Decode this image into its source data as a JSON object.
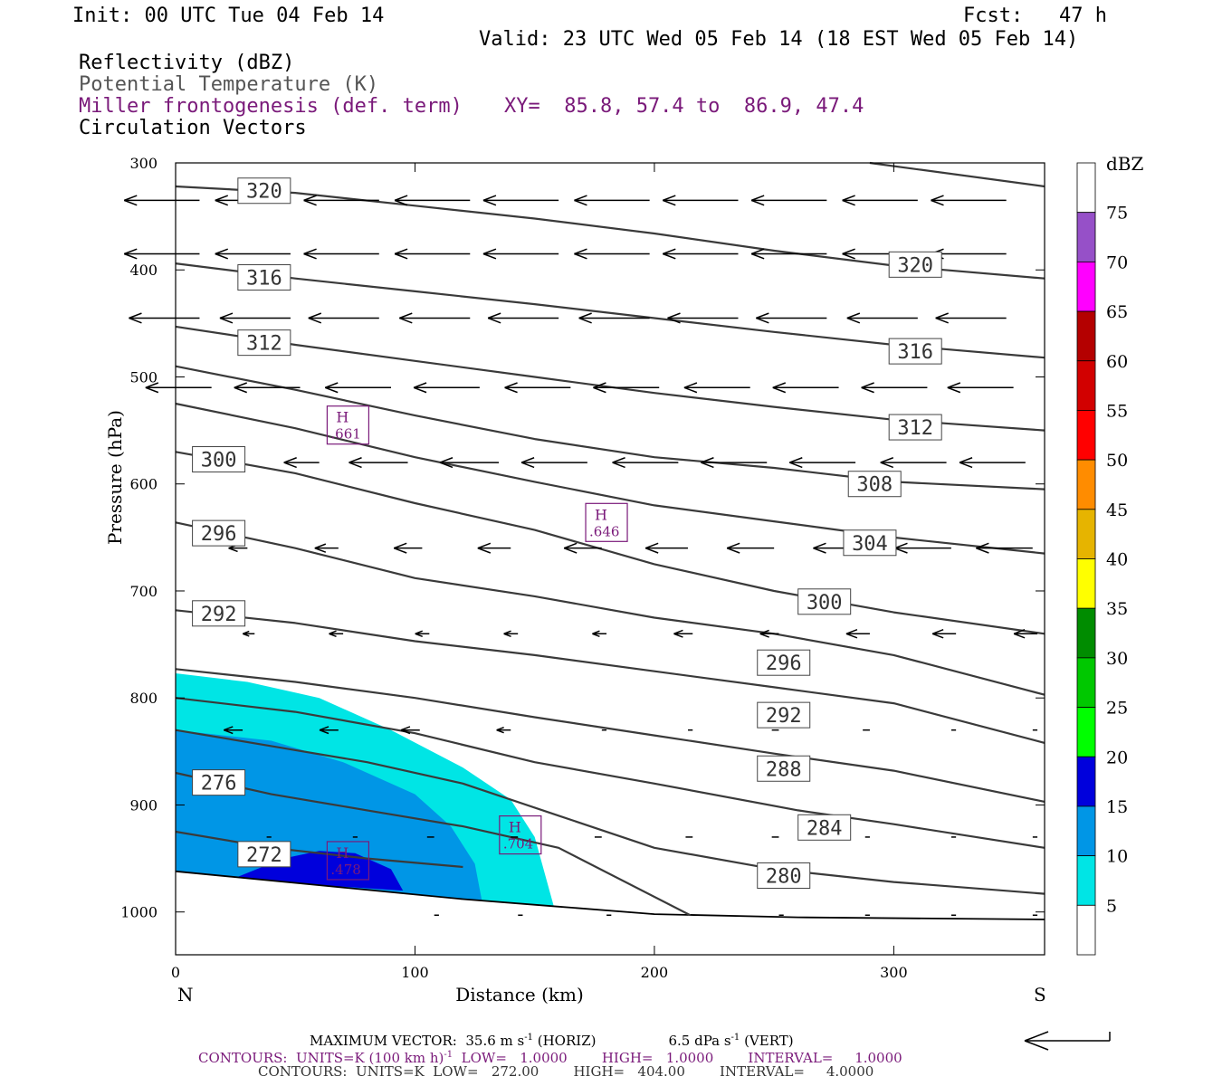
{
  "header": {
    "init": "Init: 00 UTC Tue 04 Feb 14",
    "fcst": "Fcst:   47 h",
    "valid": "Valid: 23 UTC Wed 05 Feb 14 (18 EST Wed 05 Feb 14)",
    "field1": "Reflectivity (dBZ)",
    "field2": "Potential Temperature (K)",
    "field3": "Miller frontogenesis (def. term)",
    "xy": "XY=  85.8, 57.4 to  86.9, 47.4",
    "field4": "Circulation Vectors"
  },
  "colors": {
    "contour": "#3a3a3a",
    "purple": "#7a1a7a",
    "dbz": [
      "#ffffff",
      "#00e5e5",
      "#0096e6",
      "#0000dc",
      "#00ff00",
      "#00c800",
      "#008c00",
      "#ffff00",
      "#e6b400",
      "#ff8c00",
      "#ff0000",
      "#d20000",
      "#b40000",
      "#ff00ff",
      "#9650c8",
      "#ffffff"
    ]
  },
  "chart_data": {
    "type": "cross-section",
    "xlabel": "Distance (km)",
    "ylabel": "Pressure (hPa)",
    "xlim": [
      0,
      363
    ],
    "ylim": [
      300,
      1040
    ],
    "x_ticks": [
      "0",
      "100",
      "200",
      "300"
    ],
    "y_ticks": [
      "300",
      "400",
      "500",
      "600",
      "700",
      "800",
      "900",
      "1000"
    ],
    "end_labels": {
      "left": "N",
      "right": "S"
    },
    "theta_contours": [
      {
        "value": 272,
        "label": "272",
        "points": [
          [
            0,
            925
          ],
          [
            40,
            940
          ],
          [
            80,
            950
          ],
          [
            120,
            958
          ]
        ]
      },
      {
        "value": 276,
        "label": "276",
        "points": [
          [
            0,
            870
          ],
          [
            40,
            890
          ],
          [
            80,
            905
          ],
          [
            120,
            920
          ],
          [
            160,
            940
          ],
          [
            215,
            1003
          ]
        ]
      },
      {
        "value": 280,
        "label": "280",
        "points": [
          [
            0,
            830
          ],
          [
            40,
            845
          ],
          [
            80,
            860
          ],
          [
            120,
            880
          ],
          [
            160,
            910
          ],
          [
            200,
            940
          ],
          [
            250,
            960
          ],
          [
            300,
            972
          ],
          [
            363,
            983
          ]
        ]
      },
      {
        "value": 284,
        "label": "284",
        "points": [
          [
            0,
            800
          ],
          [
            50,
            813
          ],
          [
            100,
            833
          ],
          [
            150,
            860
          ],
          [
            200,
            880
          ],
          [
            260,
            905
          ],
          [
            300,
            918
          ],
          [
            363,
            940
          ]
        ]
      },
      {
        "value": 288,
        "label": "288",
        "points": [
          [
            0,
            773
          ],
          [
            50,
            785
          ],
          [
            100,
            800
          ],
          [
            150,
            818
          ],
          [
            200,
            835
          ],
          [
            250,
            852
          ],
          [
            300,
            868
          ],
          [
            363,
            897
          ]
        ]
      },
      {
        "value": 292,
        "label": "292",
        "points": [
          [
            0,
            718
          ],
          [
            50,
            730
          ],
          [
            100,
            747
          ],
          [
            150,
            760
          ],
          [
            200,
            775
          ],
          [
            250,
            790
          ],
          [
            300,
            805
          ],
          [
            363,
            842
          ]
        ]
      },
      {
        "value": 296,
        "label": "296",
        "points": [
          [
            0,
            636
          ],
          [
            50,
            660
          ],
          [
            100,
            688
          ],
          [
            150,
            705
          ],
          [
            200,
            725
          ],
          [
            250,
            740
          ],
          [
            300,
            760
          ],
          [
            363,
            797
          ]
        ]
      },
      {
        "value": 300,
        "label": "300",
        "points": [
          [
            0,
            570
          ],
          [
            50,
            590
          ],
          [
            100,
            618
          ],
          [
            150,
            643
          ],
          [
            200,
            675
          ],
          [
            250,
            700
          ],
          [
            300,
            720
          ],
          [
            363,
            740
          ]
        ]
      },
      {
        "value": 304,
        "label": "304",
        "points": [
          [
            0,
            525
          ],
          [
            50,
            548
          ],
          [
            100,
            575
          ],
          [
            150,
            598
          ],
          [
            200,
            620
          ],
          [
            250,
            635
          ],
          [
            300,
            650
          ],
          [
            363,
            665
          ]
        ]
      },
      {
        "value": 308,
        "label": "308",
        "points": [
          [
            0,
            490
          ],
          [
            50,
            512
          ],
          [
            100,
            536
          ],
          [
            150,
            558
          ],
          [
            200,
            575
          ],
          [
            250,
            585
          ],
          [
            300,
            598
          ],
          [
            363,
            605
          ]
        ]
      },
      {
        "value": 312,
        "label": "312",
        "points": [
          [
            0,
            453
          ],
          [
            50,
            470
          ],
          [
            100,
            485
          ],
          [
            150,
            500
          ],
          [
            200,
            515
          ],
          [
            250,
            528
          ],
          [
            300,
            540
          ],
          [
            363,
            550
          ]
        ]
      },
      {
        "value": 316,
        "label": "316",
        "points": [
          [
            0,
            394
          ],
          [
            50,
            408
          ],
          [
            100,
            420
          ],
          [
            150,
            432
          ],
          [
            200,
            445
          ],
          [
            250,
            458
          ],
          [
            300,
            470
          ],
          [
            363,
            482
          ]
        ]
      },
      {
        "value": 320,
        "label": "320",
        "points": [
          [
            0,
            322
          ],
          [
            50,
            328
          ],
          [
            100,
            340
          ],
          [
            150,
            352
          ],
          [
            200,
            366
          ],
          [
            250,
            382
          ],
          [
            300,
            396
          ],
          [
            363,
            408
          ]
        ]
      },
      {
        "value": 324,
        "label": "",
        "points": [
          [
            290,
            300
          ],
          [
            363,
            322
          ]
        ]
      }
    ],
    "theta_labels": [
      {
        "label": "320",
        "x": 37,
        "p": 326
      },
      {
        "label": "316",
        "x": 37,
        "p": 407
      },
      {
        "label": "312",
        "x": 37,
        "p": 468
      },
      {
        "label": "300",
        "x": 18,
        "p": 577
      },
      {
        "label": "296",
        "x": 18,
        "p": 646
      },
      {
        "label": "292",
        "x": 18,
        "p": 721
      },
      {
        "label": "276",
        "x": 18,
        "p": 879
      },
      {
        "label": "272",
        "x": 37,
        "p": 946
      },
      {
        "label": "320",
        "x": 309,
        "p": 395
      },
      {
        "label": "316",
        "x": 309,
        "p": 476
      },
      {
        "label": "312",
        "x": 309,
        "p": 547
      },
      {
        "label": "308",
        "x": 292,
        "p": 600
      },
      {
        "label": "304",
        "x": 290,
        "p": 655
      },
      {
        "label": "300",
        "x": 271,
        "p": 710
      },
      {
        "label": "296",
        "x": 254,
        "p": 767
      },
      {
        "label": "292",
        "x": 254,
        "p": 816
      },
      {
        "label": "288",
        "x": 254,
        "p": 866
      },
      {
        "label": "284",
        "x": 271,
        "p": 921
      },
      {
        "label": "280",
        "x": 254,
        "p": 966
      }
    ],
    "frontogenesis_highs": [
      {
        "label": "H",
        "value": ".661",
        "x": 72,
        "p": 545
      },
      {
        "label": "H",
        "value": ".646",
        "x": 180,
        "p": 636
      },
      {
        "label": "H",
        "value": ".704",
        "x": 144,
        "p": 928
      },
      {
        "label": "H",
        "value": ".478",
        "x": 72,
        "p": 952
      }
    ],
    "reflectivity_areas": [
      {
        "dbz": 5,
        "points": [
          [
            0,
            777
          ],
          [
            30,
            785
          ],
          [
            60,
            800
          ],
          [
            90,
            830
          ],
          [
            120,
            865
          ],
          [
            140,
            895
          ],
          [
            150,
            930
          ],
          [
            158,
            995
          ],
          [
            120,
            990
          ],
          [
            60,
            978
          ],
          [
            0,
            968
          ]
        ]
      },
      {
        "dbz": 10,
        "points": [
          [
            0,
            830
          ],
          [
            40,
            840
          ],
          [
            70,
            860
          ],
          [
            100,
            890
          ],
          [
            115,
            920
          ],
          [
            125,
            955
          ],
          [
            128,
            990
          ],
          [
            80,
            980
          ],
          [
            0,
            970
          ]
        ]
      },
      {
        "dbz": 15,
        "points": [
          [
            25,
            968
          ],
          [
            45,
            950
          ],
          [
            60,
            943
          ],
          [
            75,
            945
          ],
          [
            90,
            960
          ],
          [
            95,
            980
          ],
          [
            60,
            975
          ],
          [
            25,
            970
          ]
        ]
      }
    ],
    "ground_surface": [
      [
        0,
        962
      ],
      [
        60,
        975
      ],
      [
        120,
        988
      ],
      [
        160,
        995
      ],
      [
        200,
        1002
      ],
      [
        260,
        1005
      ],
      [
        363,
        1007
      ]
    ],
    "vector_rows": [
      {
        "p": 335,
        "xs": [
          10,
          48,
          85,
          123,
          160,
          198,
          235,
          272,
          310,
          347
        ],
        "dxs": [
          -32,
          -32,
          -32,
          -32,
          -32,
          -32,
          -32,
          -32,
          -32,
          -32
        ]
      },
      {
        "p": 385,
        "xs": [
          10,
          48,
          85,
          123,
          160,
          198,
          235,
          272,
          310,
          347
        ],
        "dxs": [
          -32,
          -32,
          -32,
          -32,
          -32,
          -32,
          -32,
          -32,
          -32,
          -32
        ]
      },
      {
        "p": 445,
        "xs": [
          10,
          48,
          85,
          123,
          160,
          198,
          235,
          272,
          310,
          347
        ],
        "dxs": [
          -30,
          -30,
          -30,
          -30,
          -30,
          -30,
          -30,
          -30,
          -30,
          -30
        ]
      },
      {
        "p": 510,
        "xs": [
          15,
          52,
          90,
          127,
          165,
          202,
          240,
          277,
          314,
          350
        ],
        "dxs": [
          -28,
          -28,
          -28,
          -28,
          -28,
          -28,
          -28,
          -28,
          -28,
          -28
        ]
      },
      {
        "p": 580,
        "xs": [
          25,
          60,
          97,
          135,
          172,
          210,
          247,
          284,
          322,
          355
        ],
        "dxs": [
          -12,
          -15,
          -25,
          -25,
          -28,
          -28,
          -28,
          -28,
          -28,
          -28
        ]
      },
      {
        "p": 660,
        "xs": [
          30,
          68,
          103,
          140,
          178,
          214,
          250,
          288,
          324,
          358
        ],
        "dxs": [
          -8,
          -10,
          -12,
          -14,
          -16,
          -18,
          -20,
          -22,
          -24,
          -24
        ]
      },
      {
        "p": 740,
        "xs": [
          33,
          70,
          106,
          143,
          180,
          216,
          252,
          290,
          326,
          360
        ],
        "dxs": [
          -5,
          -6,
          -6,
          -6,
          -6,
          -8,
          -8,
          -10,
          -10,
          -10
        ]
      },
      {
        "p": 830,
        "xs": [
          28,
          68,
          102,
          140,
          180,
          216,
          252,
          290,
          326,
          360
        ],
        "dxs": [
          -8,
          -8,
          -8,
          -6,
          -2,
          -2,
          -3,
          -3,
          -2,
          -2
        ]
      },
      {
        "p": 930,
        "xs": [
          40,
          76,
          108,
          143,
          178,
          216,
          252,
          290,
          326,
          360
        ],
        "dxs": [
          -2,
          -2,
          -3,
          -3,
          -3,
          -3,
          -3,
          -2,
          -2,
          -2
        ]
      },
      {
        "p": 1003,
        "xs": [
          110,
          145,
          182,
          218,
          254,
          290,
          326,
          360
        ],
        "dxs": [
          -2,
          -2,
          -2,
          -2,
          -2,
          -2,
          -2,
          -2
        ]
      }
    ],
    "colorbar": {
      "title": "dBZ",
      "labels": [
        "75",
        "70",
        "65",
        "60",
        "55",
        "50",
        "45",
        "40",
        "35",
        "30",
        "25",
        "20",
        "15",
        "10",
        "5"
      ]
    }
  },
  "footer": {
    "max_vector": "MAXIMUM VECTOR:  35.6 m s",
    "max_vector_exp": "-1",
    "max_vector_horiz": " (HORIZ)",
    "max_vector_vert": "6.5 dPa s",
    "max_vector_vert_exp": "-1",
    "max_vector_vert_tail": " (VERT)",
    "contours1_a": "CONTOURS:  UNITS=K (100 km h)",
    "contours1_exp": "-1",
    "contours1_b": "  LOW=   1.0000        HIGH=   1.0000        INTERVAL=     1.0000",
    "contours2": "CONTOURS:  UNITS=K  LOW=   272.00        HIGH=   404.00        INTERVAL=     4.0000"
  }
}
